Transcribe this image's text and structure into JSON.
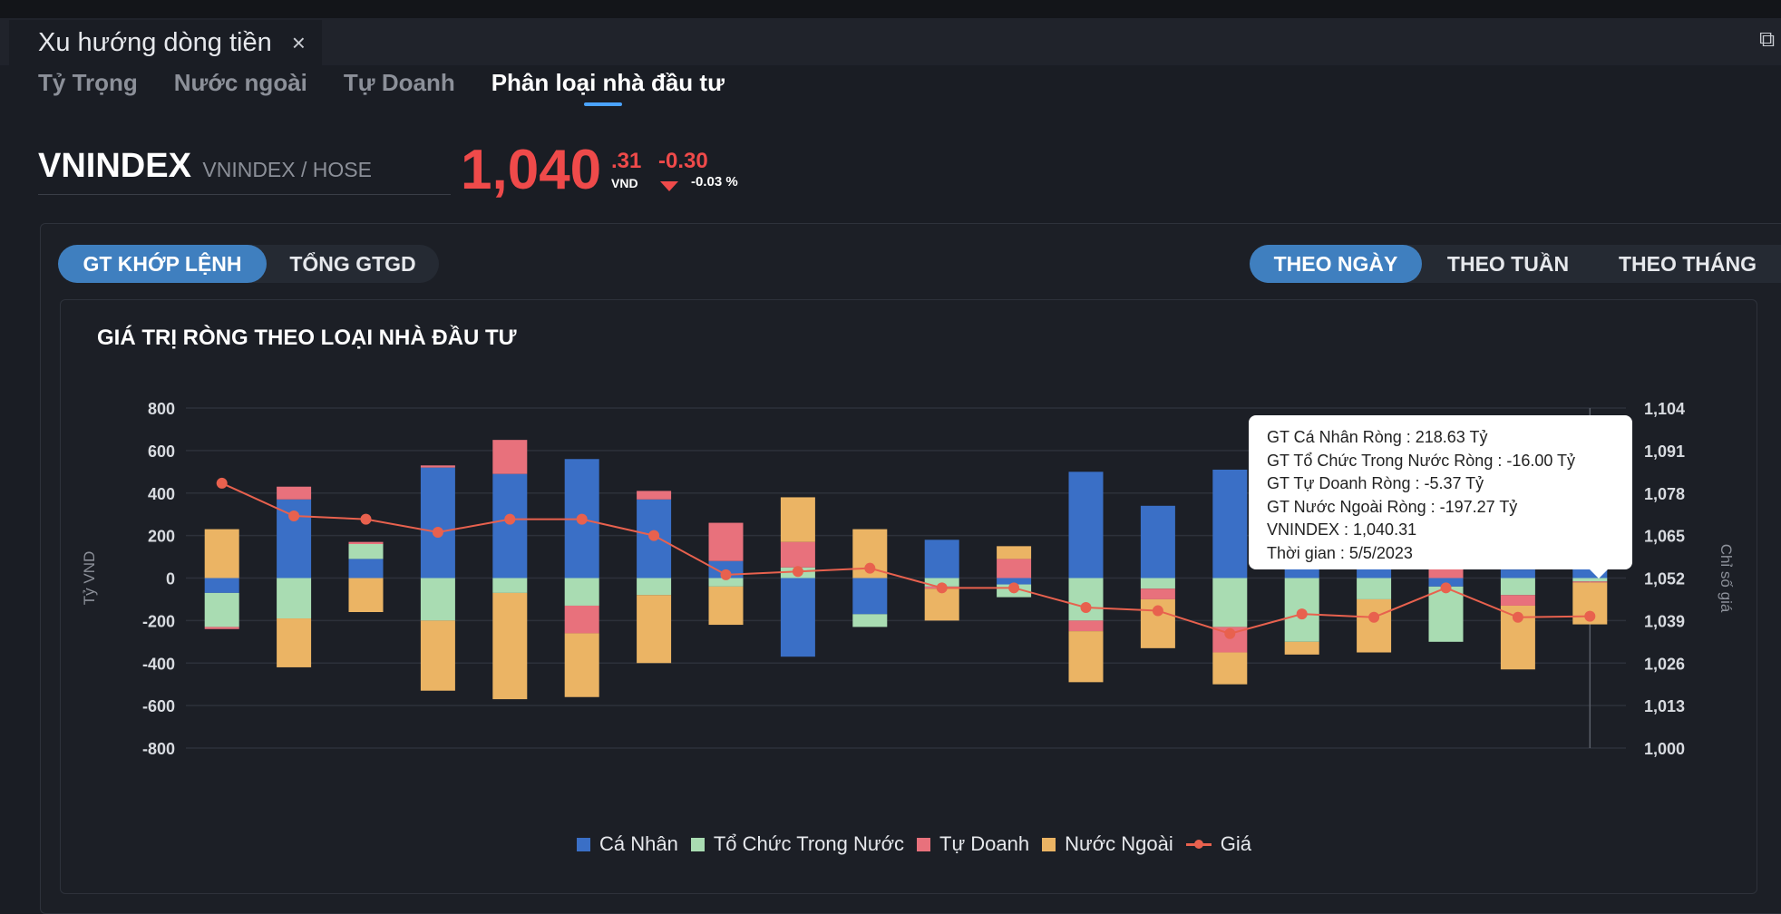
{
  "panel": {
    "title": "Xu hướng dòng tiền",
    "close_icon": "×",
    "expand_icon": "⧉"
  },
  "subtabs": [
    {
      "label": "Tỷ Trọng",
      "active": false
    },
    {
      "label": "Nước ngoài",
      "active": false
    },
    {
      "label": "Tự Doanh",
      "active": false
    },
    {
      "label": "Phân loại nhà đầu tư",
      "active": true
    }
  ],
  "ticker": {
    "symbol": "VNINDEX",
    "exchange": "VNINDEX / HOSE"
  },
  "price": {
    "integer": "1,040",
    "decimal": ".31",
    "unit": "VND",
    "change": "-0.30",
    "percent": "-0.03 %"
  },
  "value_toggle": [
    {
      "label": "GT KHỚP LỆNH",
      "active": true
    },
    {
      "label": "TỔNG GTGD",
      "active": false
    }
  ],
  "period_toggle": [
    {
      "label": "THEO NGÀY",
      "active": true
    },
    {
      "label": "THEO TUẦN",
      "active": false
    },
    {
      "label": "THEO THÁNG",
      "active": false
    }
  ],
  "colors": {
    "ca_nhan": "#3a6fc6",
    "to_chuc": "#a9dcb2",
    "tu_doanh": "#e8717c",
    "nuoc_ngoai": "#ebb464",
    "gia": "#e8614e"
  },
  "chart_data": {
    "type": "bar",
    "title": "GIÁ TRỊ RÒNG THEO LOẠI NHÀ ĐẦU TƯ",
    "ylabel": "Tỷ VND",
    "y2label": "Chỉ số giá",
    "ylim": [
      -800,
      800
    ],
    "y2lim": [
      1000,
      1104
    ],
    "yticks": [
      "800",
      "600",
      "400",
      "200",
      "0",
      "-200",
      "-400",
      "-600",
      "-800"
    ],
    "y2ticks": [
      "1,104",
      "1,091",
      "1,078",
      "1,065",
      "1,052",
      "1,039",
      "1,026",
      "1,013",
      "1,000"
    ],
    "stacked": true,
    "series": [
      {
        "name": "Cá Nhân",
        "key": "ca_nhan",
        "values": [
          -70,
          370,
          90,
          520,
          490,
          560,
          370,
          80,
          -370,
          -170,
          180,
          -30,
          500,
          340,
          510,
          180,
          140,
          -40,
          40,
          220
        ]
      },
      {
        "name": "Tổ Chức Trong Nước",
        "key": "to_chuc",
        "values": [
          -160,
          -190,
          70,
          -200,
          -70,
          -130,
          -80,
          -40,
          50,
          -60,
          -40,
          -60,
          -200,
          -50,
          -230,
          -300,
          -100,
          -260,
          -80,
          -16
        ]
      },
      {
        "name": "Tự Doanh",
        "key": "tu_doanh",
        "values": [
          -10,
          60,
          10,
          10,
          160,
          -130,
          40,
          180,
          120,
          0,
          -10,
          90,
          -50,
          -50,
          -120,
          40,
          80,
          70,
          -50,
          -5
        ]
      },
      {
        "name": "Nước Ngoài",
        "key": "nuoc_ngoai",
        "values": [
          230,
          -230,
          -160,
          -330,
          -500,
          -300,
          -320,
          -180,
          210,
          230,
          -150,
          60,
          -240,
          -230,
          -150,
          -60,
          -250,
          0,
          -300,
          -197
        ]
      }
    ],
    "line": {
      "name": "Giá",
      "key": "gia",
      "values": [
        1081,
        1071,
        1070,
        1066,
        1070,
        1070,
        1065,
        1053,
        1054,
        1055,
        1049,
        1049,
        1043,
        1042,
        1035,
        1041,
        1040,
        1049,
        1040,
        1040.31
      ]
    },
    "hover_index": 19
  },
  "tooltip": {
    "lines": [
      "GT Cá Nhân Ròng  : 218.63 Tỷ",
      "GT Tổ Chức Trong Nước Ròng : -16.00 Tỷ",
      "GT Tự Doanh Ròng : -5.37 Tỷ",
      "GT Nước Ngoài Ròng : -197.27 Tỷ",
      "VNINDEX : 1,040.31",
      "Thời gian : 5/5/2023"
    ]
  },
  "legend": [
    {
      "label": "Cá Nhân",
      "key": "ca_nhan",
      "kind": "box"
    },
    {
      "label": "Tổ Chức Trong Nước",
      "key": "to_chuc",
      "kind": "box"
    },
    {
      "label": "Tự Doanh",
      "key": "tu_doanh",
      "kind": "box"
    },
    {
      "label": "Nước Ngoài",
      "key": "nuoc_ngoai",
      "kind": "box"
    },
    {
      "label": "Giá",
      "key": "gia",
      "kind": "line"
    }
  ]
}
